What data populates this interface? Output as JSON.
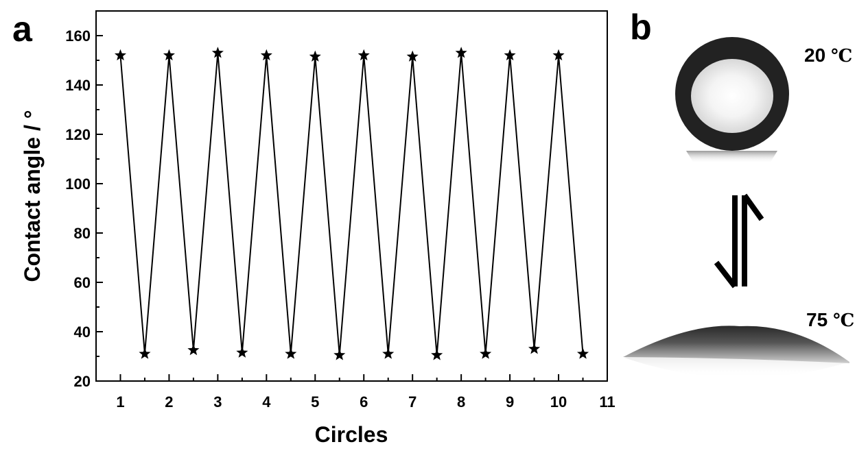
{
  "panel_a": {
    "label": "a"
  },
  "panel_b": {
    "label": "b",
    "top_image": {
      "temperature": "20",
      "unit": "℃"
    },
    "bottom_image": {
      "temperature": "75",
      "unit": "℃"
    },
    "arrow_icon": "reversible-equilibrium-arrows"
  },
  "chart_data": {
    "type": "line",
    "title": "",
    "xlabel": "Circles",
    "ylabel": "Contact  angle / °",
    "xlim": [
      0.5,
      11
    ],
    "ylim": [
      20,
      170
    ],
    "xticks": [
      1,
      2,
      3,
      4,
      5,
      6,
      7,
      8,
      9,
      10,
      11
    ],
    "yticks": [
      20,
      40,
      60,
      80,
      100,
      120,
      140,
      160
    ],
    "marker": "star",
    "series": [
      {
        "x": [
          1,
          1.5,
          2,
          2.5,
          3,
          3.5,
          4,
          4.5,
          5,
          5.5,
          6,
          6.5,
          7,
          7.5,
          8,
          8.5,
          9,
          9.5,
          10,
          10.5
        ],
        "y": [
          152,
          31,
          152,
          32.5,
          153,
          31.5,
          152,
          31,
          151.5,
          30.5,
          152,
          31,
          151.5,
          30.5,
          153,
          31,
          152,
          33,
          152,
          31
        ]
      }
    ],
    "line_color": "#000000",
    "grid": false,
    "legend": "none"
  }
}
